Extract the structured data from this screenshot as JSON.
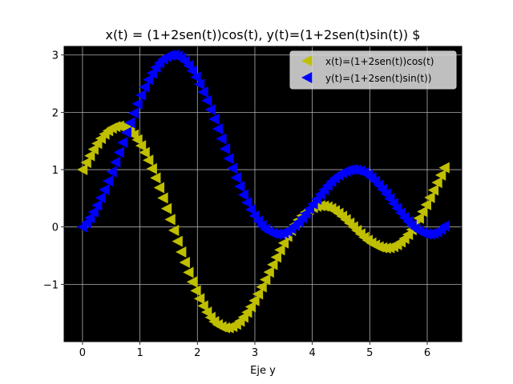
{
  "chart_data": {
    "type": "scatter",
    "title": "x(t) = (1+2sen(t))cos(t), y(t)=(1+2sen(t)sin(t)) $",
    "xlabel": "Eje y",
    "ylabel": "",
    "xlim": [
      -0.32,
      6.6
    ],
    "ylim": [
      -2.0,
      3.15
    ],
    "x_ticks": [
      0,
      1,
      2,
      3,
      4,
      5,
      6
    ],
    "y_ticks": [
      -1,
      0,
      1,
      2,
      3
    ],
    "x_tick_labels": [
      "0",
      "1",
      "2",
      "3",
      "4",
      "5",
      "6"
    ],
    "y_tick_labels": [
      "−1",
      "0",
      "1",
      "2",
      "3"
    ],
    "grid": true,
    "background": "#000000",
    "grid_color": "#b0b0b0",
    "legend_position": "top-right",
    "t_range": [
      0,
      6.3
    ],
    "n_points": 100,
    "series": [
      {
        "name": "x(t)=(1+2sen(t))cos(t)",
        "formula": "(1+2sin(t))cos(t)",
        "marker": "triangle-left",
        "color": "#bfbf00",
        "key_points": [
          [
            0,
            1.0
          ],
          [
            0.7,
            1.76
          ],
          [
            1.57,
            0.0
          ],
          [
            2.59,
            -1.76
          ],
          [
            3.14,
            -1.0
          ],
          [
            4.19,
            0.37
          ],
          [
            4.71,
            0.0
          ],
          [
            5.36,
            -0.37
          ],
          [
            6.28,
            1.0
          ]
        ]
      },
      {
        "name": "y(t)=(1+2sen(t)sin(t))",
        "formula": "(1+2sin(t))sin(t)",
        "marker": "triangle-left",
        "color": "#0000ff",
        "key_points": [
          [
            0,
            0.0
          ],
          [
            1.57,
            3.0
          ],
          [
            3.14,
            0.0
          ],
          [
            3.4,
            -0.12
          ],
          [
            4.71,
            1.0
          ],
          [
            6.03,
            -0.12
          ],
          [
            6.28,
            0.0
          ]
        ]
      }
    ]
  }
}
